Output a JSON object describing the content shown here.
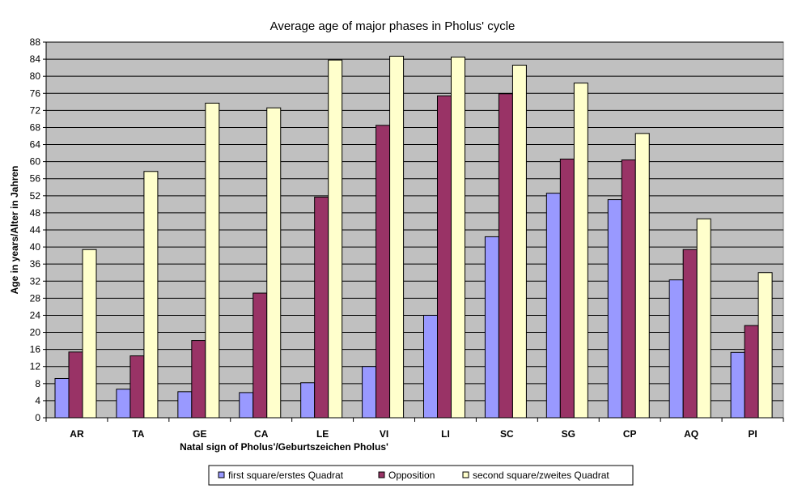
{
  "chart_data": {
    "type": "bar",
    "title": "Average age of major phases in Pholus' cycle",
    "xlabel": "Natal sign of Pholus'/Geburtszeichen Pholus'",
    "ylabel": "Age in years/Alter in Jahren",
    "ylim": [
      0,
      88
    ],
    "yticks": [
      "0",
      "4",
      "8",
      "12",
      "16",
      "20",
      "24",
      "28",
      "32",
      "36",
      "40",
      "44",
      "48",
      "52",
      "56",
      "60",
      "64",
      "68",
      "72",
      "76",
      "80",
      "84",
      "88"
    ],
    "grid": true,
    "legend_position": "bottom",
    "categories": [
      "AR",
      "TA",
      "GE",
      "CA",
      "LE",
      "VI",
      "LI",
      "SC",
      "SG",
      "CP",
      "AQ",
      "PI"
    ],
    "series": [
      {
        "name": "first square/erstes Quadrat",
        "color": "#9999ff",
        "values": [
          9.2,
          6.7,
          6.1,
          5.9,
          8.2,
          12.0,
          24.0,
          42.4,
          52.6,
          51.1,
          32.3,
          15.3
        ]
      },
      {
        "name": "Opposition",
        "color": "#993366",
        "values": [
          15.4,
          14.5,
          18.1,
          29.2,
          51.7,
          68.5,
          75.4,
          75.9,
          60.6,
          60.4,
          39.4,
          21.6
        ]
      },
      {
        "name": "second square/zweites Quadrat",
        "color": "#ffffcc",
        "values": [
          39.4,
          57.7,
          73.7,
          72.6,
          83.8,
          84.7,
          84.5,
          82.6,
          78.4,
          66.6,
          46.6,
          34.0
        ]
      }
    ],
    "plot_background": "#c0c0c0"
  }
}
